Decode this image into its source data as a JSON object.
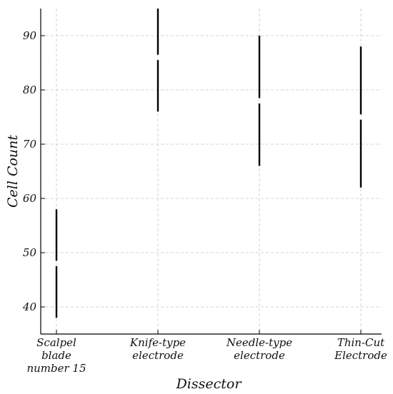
{
  "chart_data": {
    "type": "range",
    "xlabel": "Dissector",
    "ylabel": "Cell Count",
    "ylim": [
      35,
      95
    ],
    "yticks": [
      40,
      50,
      60,
      70,
      80,
      90
    ],
    "grid": true,
    "categories": [
      {
        "label": [
          "Scalpel",
          "blade",
          "number 15"
        ],
        "segments": [
          [
            38,
            47.5
          ],
          [
            48.5,
            58
          ]
        ]
      },
      {
        "label": [
          "Knife-type",
          "electrode"
        ],
        "segments": [
          [
            76,
            85.5
          ],
          [
            86.5,
            95
          ]
        ]
      },
      {
        "label": [
          "Needle-type",
          "electrode"
        ],
        "segments": [
          [
            66,
            77.5
          ],
          [
            78.5,
            90
          ]
        ]
      },
      {
        "label": [
          "Thin-Cut",
          "Electrode"
        ],
        "segments": [
          [
            62,
            74.5
          ],
          [
            75.5,
            88
          ]
        ]
      }
    ]
  }
}
